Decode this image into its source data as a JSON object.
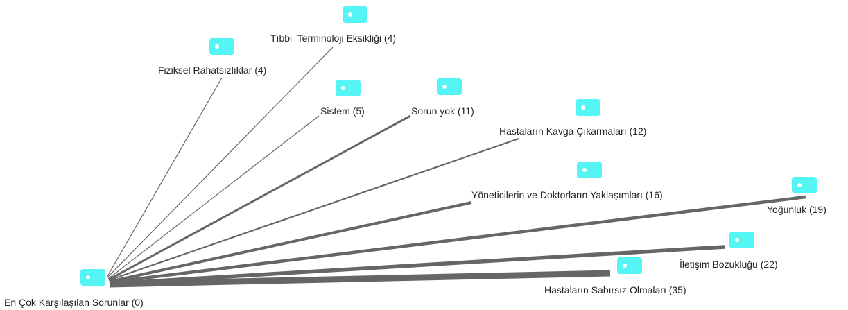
{
  "root": {
    "label": "En Çok Karşılaşılan Sorunlar (0)"
  },
  "nodes": [
    {
      "label": "Tıbbi  Terminoloji Eksikliği (4)"
    },
    {
      "label": "Fiziksel Rahatsızlıklar (4)"
    },
    {
      "label": "Sistem (5)"
    },
    {
      "label": "Sorun yok (11)"
    },
    {
      "label": "Hastaların Kavga Çıkarmaları (12)"
    },
    {
      "label": "Yöneticilerin ve Doktorların Yaklaşımları (16)"
    },
    {
      "label": "Yoğunluk (19)"
    },
    {
      "label": "İletişim Bozukluğu (22)"
    },
    {
      "label": "Hastaların Sabırsız Olmaları (35)"
    }
  ]
}
